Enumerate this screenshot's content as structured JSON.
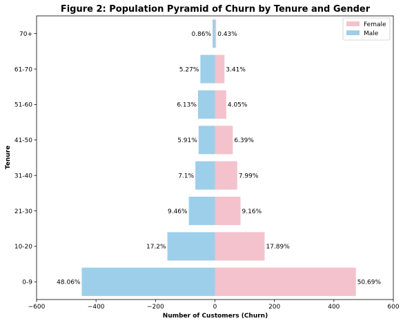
{
  "chart_data": {
    "type": "bar",
    "orientation": "horizontal",
    "title": "Figure 2: Population Pyramid of Churn by Tenure and Gender",
    "xlabel": "Number of Customers (Churn)",
    "ylabel": "Tenure",
    "xlim": [
      -600,
      600
    ],
    "xticks": [
      -600,
      -400,
      -200,
      0,
      200,
      400,
      600
    ],
    "xtick_labels": [
      "−600",
      "−400",
      "−200",
      "0",
      "200",
      "400",
      "600"
    ],
    "categories": [
      "0-9",
      "10-20",
      "21-30",
      "31-40",
      "41-50",
      "51-60",
      "61-70",
      "70+"
    ],
    "series": [
      {
        "name": "Female",
        "color": "#f4c2cc",
        "values": [
          474,
          167,
          86,
          75,
          60,
          38,
          32,
          4
        ],
        "labels": [
          "50.69%",
          "17.89%",
          "9.16%",
          "7.99%",
          "6.39%",
          "4.05%",
          "3.41%",
          "0.43%"
        ]
      },
      {
        "name": "Male",
        "color": "#9dcfea",
        "values": [
          -448,
          -160,
          -88,
          -66,
          -55,
          -57,
          -49,
          -8
        ],
        "labels": [
          "48.06%",
          "17.2%",
          "9.46%",
          "7.1%",
          "5.91%",
          "6.13%",
          "5.27%",
          "0.86%"
        ]
      }
    ],
    "legend": {
      "position": "top-right",
      "entries": [
        "Female",
        "Male"
      ]
    },
    "grid": false
  }
}
